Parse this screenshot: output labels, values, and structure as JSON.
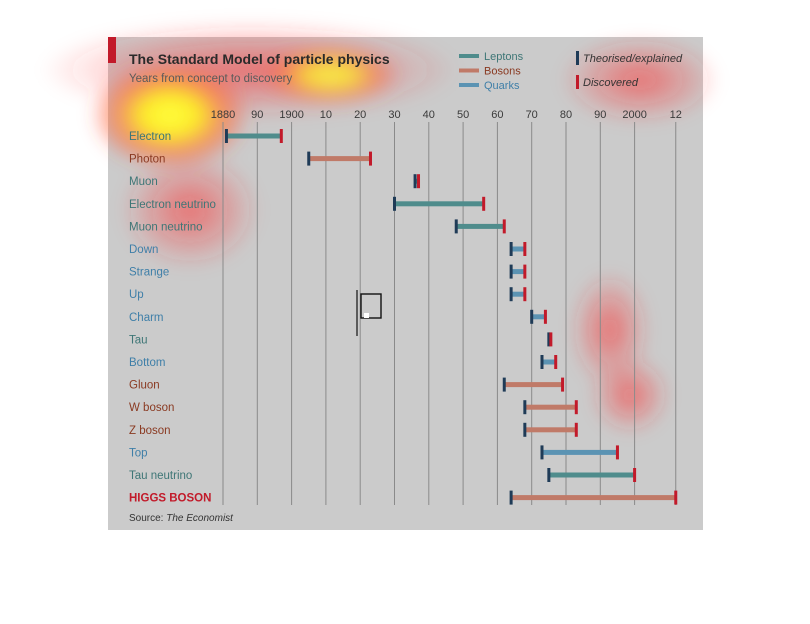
{
  "chart_data": {
    "type": "timeline-range",
    "title": "The Standard Model of particle physics",
    "subtitle": "Years from concept to discovery",
    "x_tick_labels": [
      "1880",
      "90",
      "1900",
      "10",
      "20",
      "30",
      "40",
      "50",
      "60",
      "70",
      "80",
      "90",
      "2000",
      "12"
    ],
    "x_tick_years": [
      1880,
      1890,
      1900,
      1910,
      1920,
      1930,
      1940,
      1950,
      1960,
      1970,
      1980,
      1990,
      2000,
      2012
    ],
    "xlim": [
      1876,
      2016
    ],
    "grid": true,
    "legend": {
      "placement": "top-right",
      "categories": [
        {
          "key": "lepton",
          "label": "Leptons",
          "color": "#4f8c8c"
        },
        {
          "key": "boson",
          "label": "Bosons",
          "color": "#c07a68"
        },
        {
          "key": "quark",
          "label": "Quarks",
          "color": "#5b93b3"
        }
      ],
      "markers": [
        {
          "label": "Theorised/explained",
          "color": "#1f3b57"
        },
        {
          "label": "Discovered",
          "color": "#c21a2a"
        }
      ]
    },
    "particles": [
      {
        "name": "Electron",
        "category": "lepton",
        "theorised": 1881,
        "discovered": 1897
      },
      {
        "name": "Photon",
        "category": "boson",
        "theorised": 1905,
        "discovered": 1923
      },
      {
        "name": "Muon",
        "category": "lepton",
        "theorised": 1936,
        "discovered": 1937
      },
      {
        "name": "Electron neutrino",
        "category": "lepton",
        "theorised": 1930,
        "discovered": 1956
      },
      {
        "name": "Muon neutrino",
        "category": "lepton",
        "theorised": 1948,
        "discovered": 1962
      },
      {
        "name": "Down",
        "category": "quark",
        "theorised": 1964,
        "discovered": 1968
      },
      {
        "name": "Strange",
        "category": "quark",
        "theorised": 1964,
        "discovered": 1968
      },
      {
        "name": "Up",
        "category": "quark",
        "theorised": 1964,
        "discovered": 1968
      },
      {
        "name": "Charm",
        "category": "quark",
        "theorised": 1970,
        "discovered": 1974
      },
      {
        "name": "Tau",
        "category": "lepton",
        "theorised": 1975,
        "discovered": 1975
      },
      {
        "name": "Bottom",
        "category": "quark",
        "theorised": 1973,
        "discovered": 1977
      },
      {
        "name": "Gluon",
        "category": "boson",
        "theorised": 1962,
        "discovered": 1979
      },
      {
        "name": "W boson",
        "category": "boson",
        "theorised": 1968,
        "discovered": 1983
      },
      {
        "name": "Z boson",
        "category": "boson",
        "theorised": 1968,
        "discovered": 1983
      },
      {
        "name": "Top",
        "category": "quark",
        "theorised": 1973,
        "discovered": 1995
      },
      {
        "name": "Tau neutrino",
        "category": "lepton",
        "theorised": 1975,
        "discovered": 2000
      },
      {
        "name": "HIGGS BOSON",
        "category": "boson",
        "theorised": 1964,
        "discovered": 2012
      }
    ],
    "source_prefix": "Source: ",
    "source_name": "The Economist"
  },
  "colors": {
    "panel": "#cbcbcb",
    "accent_red": "#c21a2a",
    "grid": "#8a8a8a"
  }
}
